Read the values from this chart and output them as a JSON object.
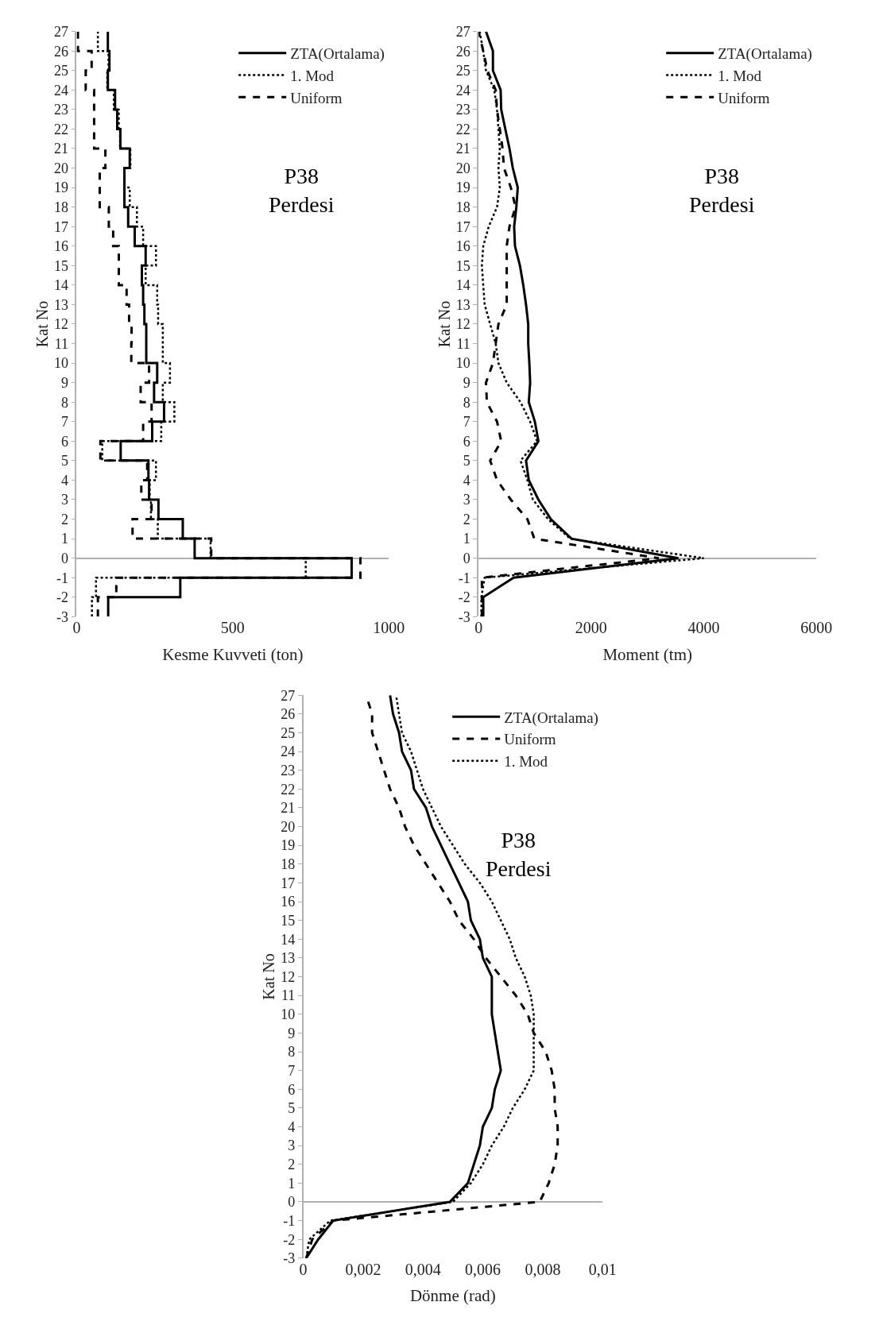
{
  "chart_data": [
    {
      "type": "step",
      "xlabel": "Kesme Kuvveti (ton)",
      "ylabel": "Kat No",
      "annotations": [
        "P38\nPerdesi"
      ],
      "legend": "top right",
      "xlim": [
        0,
        1000
      ],
      "xticks": [
        0,
        500,
        1000
      ],
      "ylim": [
        -3,
        27
      ],
      "yticks": [
        -3,
        -2,
        -1,
        0,
        1,
        2,
        3,
        4,
        5,
        6,
        7,
        8,
        9,
        10,
        11,
        12,
        13,
        14,
        15,
        16,
        17,
        18,
        19,
        20,
        21,
        22,
        23,
        24,
        25,
        26,
        27
      ],
      "series": [
        {
          "name": "ZTA(Ortalama)",
          "color": "#000000",
          "line_style": "solid",
          "values": [
            -3,
            -2,
            -1,
            0,
            1,
            2,
            3,
            4,
            5,
            6,
            7,
            8,
            9,
            10,
            11,
            12,
            13,
            14,
            15,
            16,
            17,
            18,
            19,
            20,
            21,
            22,
            23,
            24,
            25,
            26,
            27
          ],
          "x": [
            101,
            332,
            881,
            378,
            340,
            262,
            232,
            230,
            141,
            242,
            280,
            248,
            258,
            223,
            223,
            217,
            213,
            209,
            221,
            186,
            165,
            153,
            153,
            170,
            140,
            130,
            123,
            100,
            105,
            100,
            100
          ]
        },
        {
          "name": "1. Mod",
          "color": "#000000",
          "line_style": "dotted",
          "values": [
            -3,
            -2,
            -1,
            0,
            1,
            2,
            3,
            4,
            5,
            6,
            7,
            8,
            9,
            10,
            11,
            12,
            13,
            14,
            15,
            16,
            17,
            18,
            19,
            20,
            21,
            22,
            23,
            24,
            25,
            26,
            27
          ],
          "x": [
            49,
            62,
            734,
            429,
            260,
            238,
            234,
            254,
            82,
            271,
            313,
            276,
            299,
            276,
            276,
            261,
            258,
            221,
            254,
            213,
            193,
            170,
            153,
            172,
            139,
            135,
            119,
            98,
            102,
            68,
            68
          ]
        },
        {
          "name": "Uniform",
          "color": "#000000",
          "line_style": "dashed",
          "values": [
            -3,
            -2,
            -1,
            0,
            1,
            2,
            3,
            4,
            5,
            6,
            7,
            8,
            9,
            10,
            11,
            12,
            13,
            14,
            15,
            16,
            17,
            18,
            19,
            20,
            21,
            22,
            23,
            24,
            25,
            26,
            27
          ],
          "x": [
            68,
            127,
            909,
            431,
            179,
            240,
            207,
            226,
            76,
            213,
            240,
            205,
            232,
            175,
            176,
            168,
            160,
            135,
            135,
            117,
            103,
            74,
            74,
            92,
            56,
            56,
            56,
            29,
            48,
            4,
            4
          ]
        }
      ]
    },
    {
      "type": "line",
      "xlabel": "Moment (tm)",
      "ylabel": "Kat No",
      "annotations": [
        "P38\nPerdesi"
      ],
      "legend": "top right",
      "xlim": [
        0,
        6000
      ],
      "xticks": [
        0,
        2000,
        4000,
        6000
      ],
      "ylim": [
        -3,
        27
      ],
      "yticks": [
        -3,
        -2,
        -1,
        0,
        1,
        2,
        3,
        4,
        5,
        6,
        7,
        8,
        9,
        10,
        11,
        12,
        13,
        14,
        15,
        16,
        17,
        18,
        19,
        20,
        21,
        22,
        23,
        24,
        25,
        26,
        27
      ],
      "series": [
        {
          "name": "ZTA(Ortalama)",
          "color": "#000000",
          "line_style": "solid",
          "values": [
            -3,
            -2,
            -1,
            0,
            1,
            2,
            3,
            4,
            5,
            6,
            7,
            8,
            9,
            10,
            11,
            12,
            13,
            14,
            15,
            16,
            17,
            18,
            19,
            20,
            21,
            22,
            23,
            24,
            25,
            26,
            27
          ],
          "x": [
            83,
            83,
            622,
            3550,
            1651,
            1284,
            1063,
            892,
            843,
            1063,
            1000,
            892,
            916,
            902,
            882,
            882,
            843,
            794,
            735,
            647,
            632,
            671,
            696,
            608,
            549,
            475,
            402,
            392,
            255,
            255,
            132
          ]
        },
        {
          "name": "1. Mod",
          "color": "#000000",
          "line_style": "dotted",
          "values": [
            -3,
            -2,
            -1,
            0,
            1,
            2,
            3,
            4,
            5,
            6,
            7,
            8,
            9,
            10,
            11,
            12,
            13,
            14,
            15,
            16,
            17,
            18,
            19,
            20,
            21,
            22,
            23,
            24,
            25,
            26,
            27
          ],
          "x": [
            50,
            50,
            108,
            4000,
            1627,
            1235,
            965,
            867,
            745,
            1039,
            916,
            745,
            500,
            353,
            304,
            206,
            108,
            83,
            59,
            83,
            181,
            328,
            377,
            353,
            377,
            353,
            328,
            279,
            132,
            83,
            20
          ]
        },
        {
          "name": "Uniform",
          "color": "#000000",
          "line_style": "dashed",
          "values": [
            -3,
            -2,
            -1,
            0,
            1,
            2,
            3,
            4,
            5,
            6,
            7,
            8,
            9,
            10,
            11,
            12,
            13,
            14,
            15,
            16,
            17,
            18,
            19,
            20,
            21,
            22,
            23,
            24,
            25,
            26,
            27
          ],
          "x": [
            59,
            59,
            59,
            3200,
            990,
            867,
            573,
            328,
            206,
            402,
            328,
            147,
            132,
            255,
            304,
            353,
            500,
            500,
            500,
            500,
            549,
            657,
            573,
            451,
            426,
            377,
            328,
            304,
            157,
            83,
            0
          ]
        }
      ]
    },
    {
      "type": "line",
      "xlabel": "Dönme (rad)",
      "ylabel": "Kat No",
      "annotations": [
        "P38\nPerdesi"
      ],
      "legend": "top right",
      "xlim": [
        0,
        0.01
      ],
      "xticks": [
        0,
        {
          "value": 0.002,
          "label": "0,002"
        },
        {
          "value": 0.004,
          "label": "0,004"
        },
        {
          "value": 0.006,
          "label": "0,006"
        },
        {
          "value": 0.008,
          "label": "0,008"
        },
        {
          "value": 0.01,
          "label": "0,01"
        }
      ],
      "ylim": [
        -3,
        27
      ],
      "yticks": [
        -3,
        -2,
        -1,
        0,
        1,
        2,
        3,
        4,
        5,
        6,
        7,
        8,
        9,
        10,
        11,
        12,
        13,
        14,
        15,
        16,
        17,
        18,
        19,
        20,
        21,
        22,
        23,
        24,
        25,
        26,
        27
      ],
      "series": [
        {
          "name": "ZTA(Ortalama)",
          "color": "#000000",
          "line_style": "solid",
          "values": [
            -3,
            -2,
            -1,
            0,
            1,
            2,
            3,
            4,
            5,
            6,
            7,
            8,
            9,
            10,
            11,
            12,
            13,
            14,
            15,
            16,
            17,
            18,
            19,
            20,
            21,
            22,
            23,
            24,
            25,
            26,
            27
          ],
          "x": [
            0.0001,
            0.0005,
            0.001,
            0.0049,
            0.0055,
            0.0057,
            0.0059,
            0.006,
            0.0063,
            0.0064,
            0.0066,
            0.0065,
            0.0064,
            0.0063,
            0.0063,
            0.0063,
            0.006,
            0.0059,
            0.0056,
            0.0055,
            0.0052,
            0.0049,
            0.0046,
            0.0043,
            0.0041,
            0.0037,
            0.0036,
            0.0033,
            0.0032,
            0.003,
            0.0029
          ]
        },
        {
          "name": "Uniform",
          "color": "#000000",
          "line_style": "dashed",
          "values": [
            -3,
            -2,
            -1,
            0,
            1,
            2,
            3,
            4,
            5,
            6,
            7,
            8,
            9,
            10,
            11,
            12,
            13,
            14,
            15,
            16,
            17,
            18,
            19,
            20,
            21,
            22,
            23,
            24,
            25,
            26,
            27
          ],
          "x": [
            0.0001,
            0.0003,
            0.001,
            0.0079,
            0.0082,
            0.0084,
            0.0085,
            0.0085,
            0.0084,
            0.0084,
            0.0083,
            0.0081,
            0.0077,
            0.0075,
            0.0071,
            0.0066,
            0.0061,
            0.0057,
            0.0052,
            0.0049,
            0.0045,
            0.0041,
            0.0037,
            0.0034,
            0.0032,
            0.0029,
            0.0027,
            0.0025,
            0.0023,
            0.0023,
            0.0021
          ]
        },
        {
          "name": "1. Mod",
          "color": "#000000",
          "line_style": "dotted",
          "values": [
            -3,
            -2,
            -1,
            0,
            1,
            2,
            3,
            4,
            5,
            6,
            7,
            8,
            9,
            10,
            11,
            12,
            13,
            14,
            15,
            16,
            17,
            18,
            19,
            20,
            21,
            22,
            23,
            24,
            25,
            26,
            27
          ],
          "x": [
            0.0001,
            0.0002,
            0.0009,
            0.005,
            0.0056,
            0.006,
            0.0063,
            0.0067,
            0.007,
            0.0074,
            0.0077,
            0.0077,
            0.0077,
            0.0077,
            0.0076,
            0.0074,
            0.0071,
            0.0069,
            0.0066,
            0.0063,
            0.0059,
            0.0054,
            0.005,
            0.0046,
            0.0043,
            0.004,
            0.0038,
            0.0036,
            0.0033,
            0.0032,
            0.0031
          ]
        }
      ]
    }
  ]
}
